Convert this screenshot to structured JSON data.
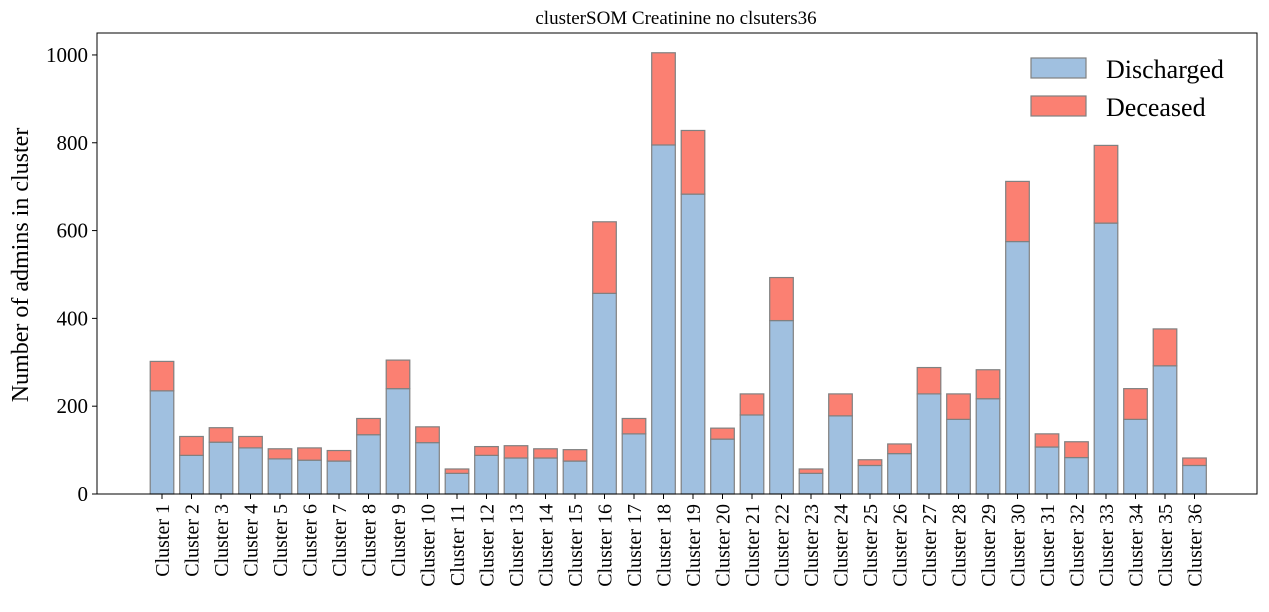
{
  "chart_data": {
    "type": "bar",
    "stacked": true,
    "title": "clusterSOM Creatinine no clsuters36",
    "xlabel": "",
    "ylabel": "Number of admins in cluster",
    "ylim": [
      0,
      1050
    ],
    "yticks": [
      0,
      200,
      400,
      600,
      800,
      1000
    ],
    "grid": false,
    "legend_position": "top-right",
    "categories": [
      "Cluster 1",
      "Cluster 2",
      "Cluster 3",
      "Cluster 4",
      "Cluster 5",
      "Cluster 6",
      "Cluster 7",
      "Cluster 8",
      "Cluster 9",
      "Cluster 10",
      "Cluster 11",
      "Cluster 12",
      "Cluster 13",
      "Cluster 14",
      "Cluster 15",
      "Cluster 16",
      "Cluster 17",
      "Cluster 18",
      "Cluster 19",
      "Cluster 20",
      "Cluster 21",
      "Cluster 22",
      "Cluster 23",
      "Cluster 24",
      "Cluster 25",
      "Cluster 26",
      "Cluster 27",
      "Cluster 28",
      "Cluster 29",
      "Cluster 30",
      "Cluster 31",
      "Cluster 32",
      "Cluster 33",
      "Cluster 34",
      "Cluster 35",
      "Cluster 36"
    ],
    "series": [
      {
        "name": "Discharged",
        "color": "#a0c0e0",
        "values": [
          235,
          88,
          118,
          105,
          80,
          77,
          75,
          135,
          240,
          117,
          47,
          88,
          82,
          82,
          75,
          457,
          137,
          795,
          683,
          125,
          180,
          395,
          47,
          178,
          65,
          92,
          228,
          170,
          217,
          575,
          107,
          83,
          617,
          170,
          292,
          65
        ]
      },
      {
        "name": "Deceased",
        "color": "#fb8072",
        "values": [
          67,
          43,
          33,
          26,
          23,
          28,
          24,
          37,
          65,
          36,
          10,
          20,
          28,
          21,
          26,
          163,
          35,
          210,
          145,
          25,
          48,
          98,
          10,
          50,
          13,
          22,
          60,
          58,
          66,
          137,
          30,
          36,
          177,
          70,
          84,
          17
        ]
      }
    ],
    "edge_color": "#808080"
  }
}
